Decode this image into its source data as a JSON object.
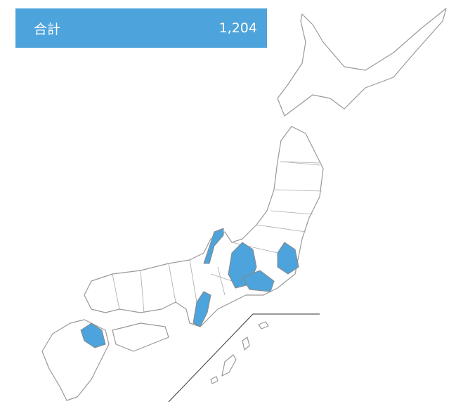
{
  "summary": {
    "label": "合計",
    "value": "1,204"
  }
}
